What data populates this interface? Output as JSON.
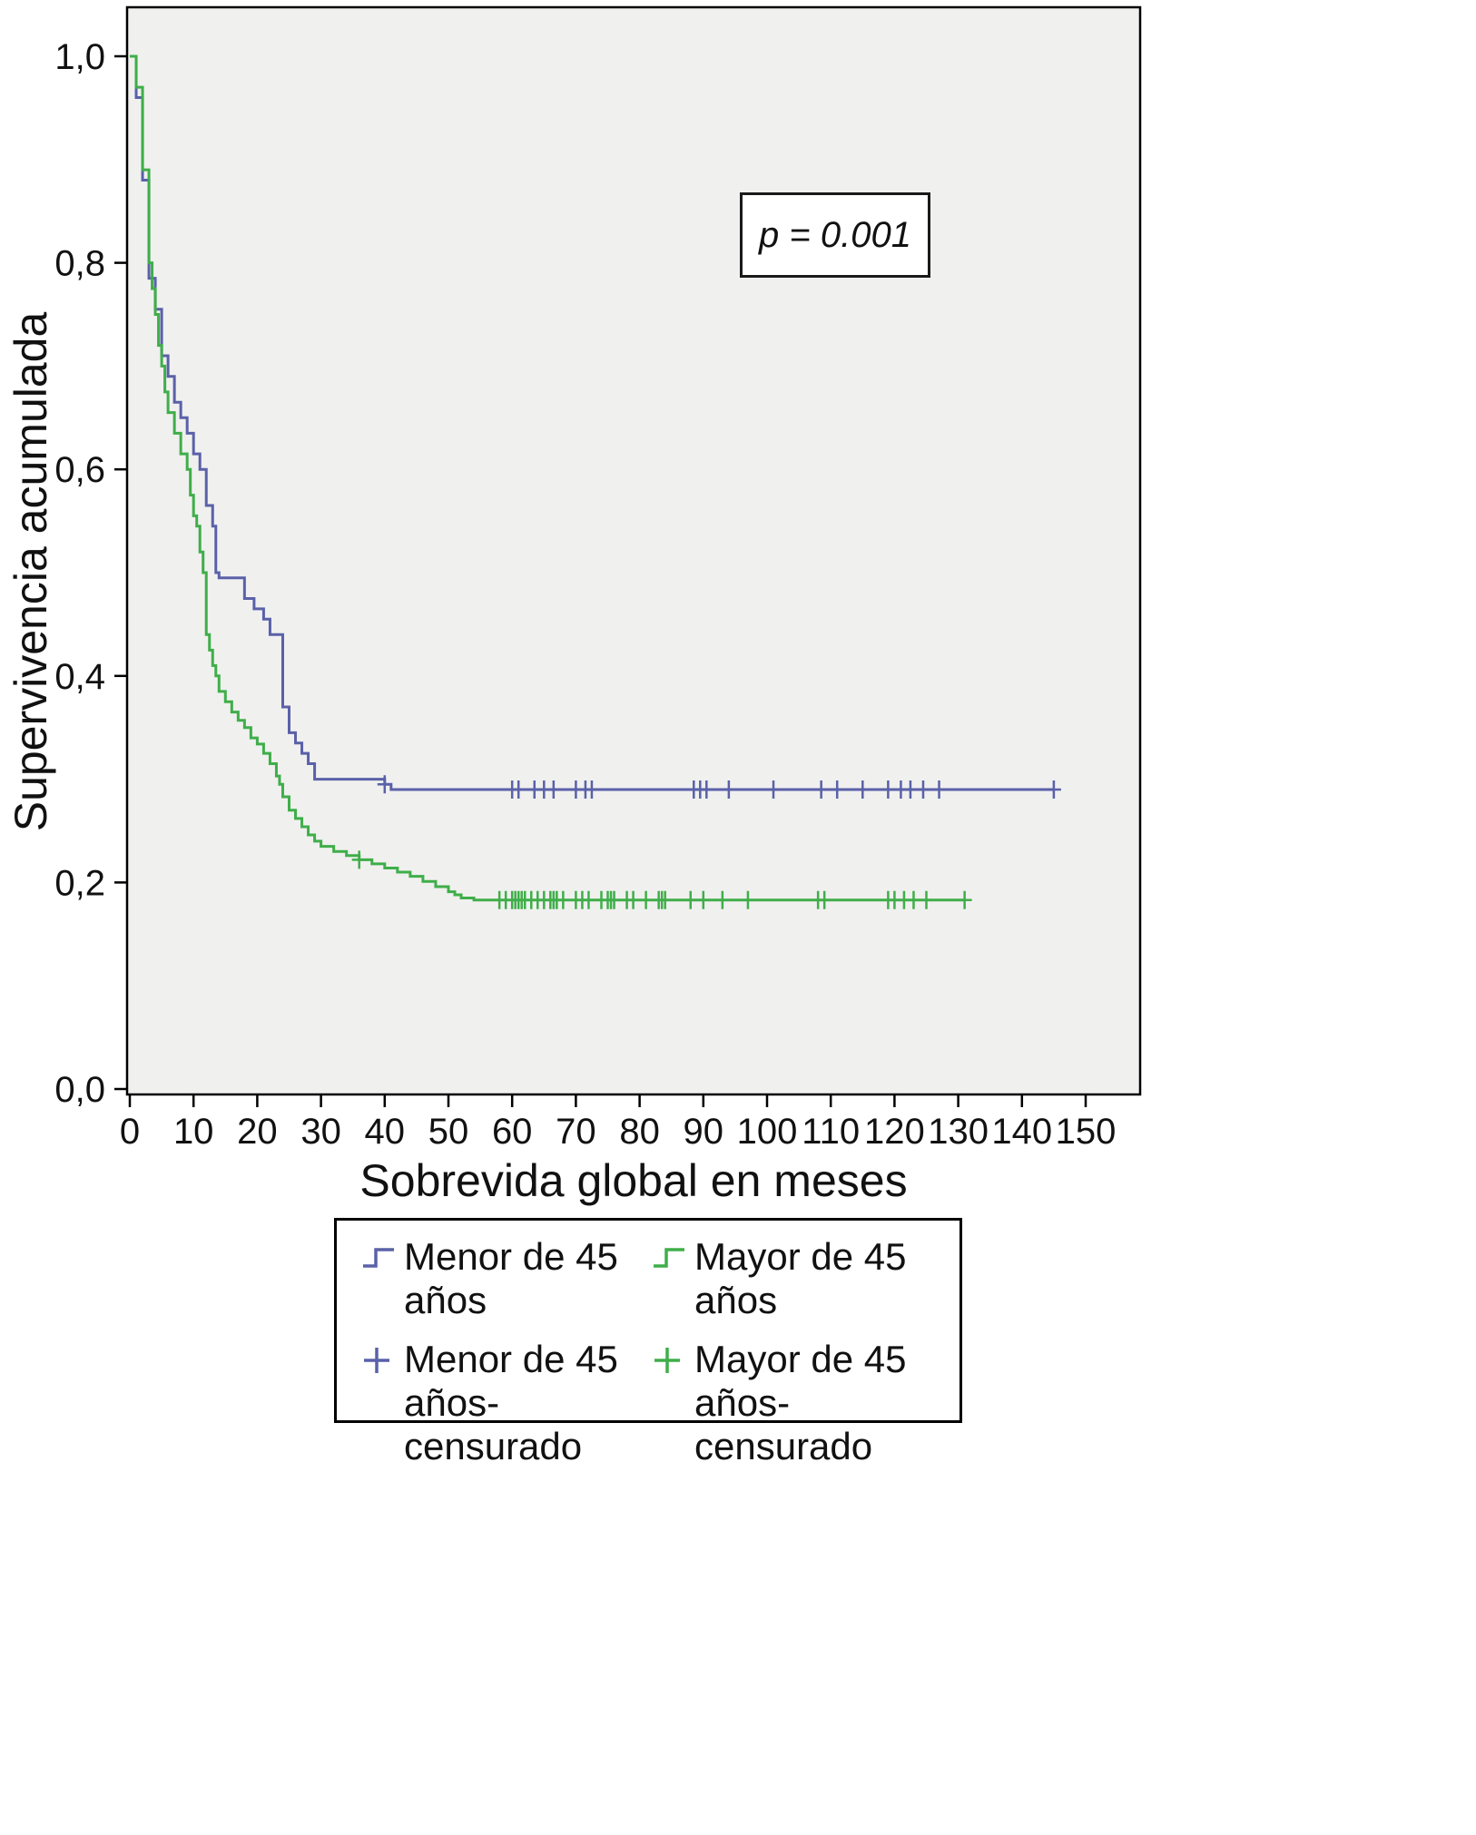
{
  "figure": {
    "p_annotation": "p = 0.001"
  },
  "axes": {
    "x_title": "Sobrevida global en meses",
    "y_title": "Supervivencia acumulada"
  },
  "legend": {
    "items": [
      {
        "label": "Menor de 45 años",
        "symbol": "step-line",
        "color": "#5a61a8"
      },
      {
        "label": "Mayor de 45 años",
        "symbol": "step-line",
        "color": "#3fae49"
      },
      {
        "label": "Menor de 45 años-censurado",
        "symbol": "plus",
        "color": "#5a61a8"
      },
      {
        "label": "Mayor de 45 años-censurado",
        "symbol": "plus",
        "color": "#3fae49"
      }
    ]
  },
  "chart_data": {
    "type": "line",
    "subtype": "kaplan_meier_step",
    "title": "",
    "xlabel": "Sobrevida global en meses",
    "ylabel": "Supervivencia acumulada",
    "xlim": [
      0,
      158
    ],
    "ylim": [
      0,
      1.05
    ],
    "grid": false,
    "legend_position": "bottom",
    "plot_background": "#f0f0ef",
    "annotation": {
      "text": "p = 0.001",
      "x": 96,
      "y": 0.83
    },
    "x_ticks": {
      "values": [
        0,
        10,
        20,
        30,
        40,
        50,
        60,
        70,
        80,
        90,
        100,
        110,
        120,
        130,
        140,
        150
      ],
      "labels": [
        "0",
        "10",
        "20",
        "30",
        "40",
        "50",
        "60",
        "70",
        "80",
        "90",
        "100",
        "110",
        "120",
        "130",
        "140",
        "150"
      ]
    },
    "y_ticks": {
      "values": [
        0,
        0.2,
        0.4,
        0.6,
        0.8,
        1.0
      ],
      "labels": [
        "0,0",
        "0,2",
        "0,4",
        "0,6",
        "0,8",
        "1,0"
      ]
    },
    "series": [
      {
        "name": "Menor de 45 años",
        "color": "#5a61a8",
        "end_x": 145,
        "steps": [
          [
            0,
            1.0
          ],
          [
            1,
            0.96
          ],
          [
            2,
            0.88
          ],
          [
            3,
            0.785
          ],
          [
            4,
            0.755
          ],
          [
            5,
            0.71
          ],
          [
            6,
            0.69
          ],
          [
            7,
            0.665
          ],
          [
            8,
            0.65
          ],
          [
            9,
            0.635
          ],
          [
            10,
            0.615
          ],
          [
            11,
            0.6
          ],
          [
            12,
            0.565
          ],
          [
            13,
            0.545
          ],
          [
            13.5,
            0.5
          ],
          [
            14,
            0.495
          ],
          [
            18,
            0.475
          ],
          [
            19.5,
            0.465
          ],
          [
            21,
            0.455
          ],
          [
            22,
            0.44
          ],
          [
            24,
            0.37
          ],
          [
            25,
            0.345
          ],
          [
            26,
            0.335
          ],
          [
            27,
            0.325
          ],
          [
            28,
            0.315
          ],
          [
            29,
            0.3
          ],
          [
            40,
            0.295
          ],
          [
            41,
            0.29
          ]
        ],
        "censored": [
          [
            40,
            0.295
          ],
          [
            60,
            0.29
          ],
          [
            61,
            0.29
          ],
          [
            63.5,
            0.29
          ],
          [
            65,
            0.29
          ],
          [
            66.5,
            0.29
          ],
          [
            70,
            0.29
          ],
          [
            71.5,
            0.29
          ],
          [
            72.5,
            0.29
          ],
          [
            88.5,
            0.29
          ],
          [
            89.5,
            0.29
          ],
          [
            90.5,
            0.29
          ],
          [
            94,
            0.29
          ],
          [
            101,
            0.29
          ],
          [
            108.5,
            0.29
          ],
          [
            111,
            0.29
          ],
          [
            115,
            0.29
          ],
          [
            119,
            0.29
          ],
          [
            121,
            0.29
          ],
          [
            122.5,
            0.29
          ],
          [
            124.5,
            0.29
          ],
          [
            127,
            0.29
          ],
          [
            145,
            0.29
          ]
        ]
      },
      {
        "name": "Mayor de 45 años",
        "color": "#3fae49",
        "end_x": 131,
        "steps": [
          [
            0,
            1.0
          ],
          [
            1,
            0.97
          ],
          [
            2,
            0.89
          ],
          [
            3,
            0.8
          ],
          [
            3.5,
            0.775
          ],
          [
            4,
            0.75
          ],
          [
            4.5,
            0.72
          ],
          [
            5,
            0.7
          ],
          [
            5.5,
            0.675
          ],
          [
            6,
            0.655
          ],
          [
            7,
            0.635
          ],
          [
            8,
            0.615
          ],
          [
            9,
            0.6
          ],
          [
            9.5,
            0.575
          ],
          [
            10,
            0.555
          ],
          [
            10.5,
            0.545
          ],
          [
            11,
            0.52
          ],
          [
            11.5,
            0.5
          ],
          [
            12,
            0.44
          ],
          [
            12.5,
            0.425
          ],
          [
            13,
            0.41
          ],
          [
            13.5,
            0.4
          ],
          [
            14,
            0.385
          ],
          [
            15,
            0.375
          ],
          [
            16,
            0.365
          ],
          [
            17,
            0.357
          ],
          [
            18,
            0.35
          ],
          [
            19,
            0.34
          ],
          [
            20,
            0.334
          ],
          [
            21,
            0.325
          ],
          [
            22,
            0.315
          ],
          [
            23,
            0.303
          ],
          [
            23.5,
            0.295
          ],
          [
            24,
            0.283
          ],
          [
            25,
            0.27
          ],
          [
            26,
            0.262
          ],
          [
            27,
            0.254
          ],
          [
            28,
            0.246
          ],
          [
            29,
            0.24
          ],
          [
            30,
            0.235
          ],
          [
            32,
            0.23
          ],
          [
            34,
            0.226
          ],
          [
            36,
            0.222
          ],
          [
            38,
            0.218
          ],
          [
            40,
            0.214
          ],
          [
            42,
            0.21
          ],
          [
            44,
            0.206
          ],
          [
            46,
            0.201
          ],
          [
            48,
            0.196
          ],
          [
            50,
            0.191
          ],
          [
            51,
            0.188
          ],
          [
            52,
            0.185
          ],
          [
            54,
            0.183
          ]
        ],
        "censored": [
          [
            36,
            0.222
          ],
          [
            58,
            0.183
          ],
          [
            59,
            0.183
          ],
          [
            60,
            0.183
          ],
          [
            60.5,
            0.183
          ],
          [
            61,
            0.183
          ],
          [
            61.5,
            0.183
          ],
          [
            62,
            0.183
          ],
          [
            63,
            0.183
          ],
          [
            64,
            0.183
          ],
          [
            65,
            0.183
          ],
          [
            66,
            0.183
          ],
          [
            66.5,
            0.183
          ],
          [
            67,
            0.183
          ],
          [
            68,
            0.183
          ],
          [
            70,
            0.183
          ],
          [
            71,
            0.183
          ],
          [
            72,
            0.183
          ],
          [
            74,
            0.183
          ],
          [
            75,
            0.183
          ],
          [
            75.5,
            0.183
          ],
          [
            76,
            0.183
          ],
          [
            78,
            0.183
          ],
          [
            79,
            0.183
          ],
          [
            81,
            0.183
          ],
          [
            83,
            0.183
          ],
          [
            83.5,
            0.183
          ],
          [
            84,
            0.183
          ],
          [
            88,
            0.183
          ],
          [
            90,
            0.183
          ],
          [
            93,
            0.183
          ],
          [
            97,
            0.183
          ],
          [
            108,
            0.183
          ],
          [
            109,
            0.183
          ],
          [
            119,
            0.183
          ],
          [
            120,
            0.183
          ],
          [
            121.5,
            0.183
          ],
          [
            123,
            0.183
          ],
          [
            125,
            0.183
          ],
          [
            131,
            0.183
          ]
        ]
      }
    ]
  }
}
